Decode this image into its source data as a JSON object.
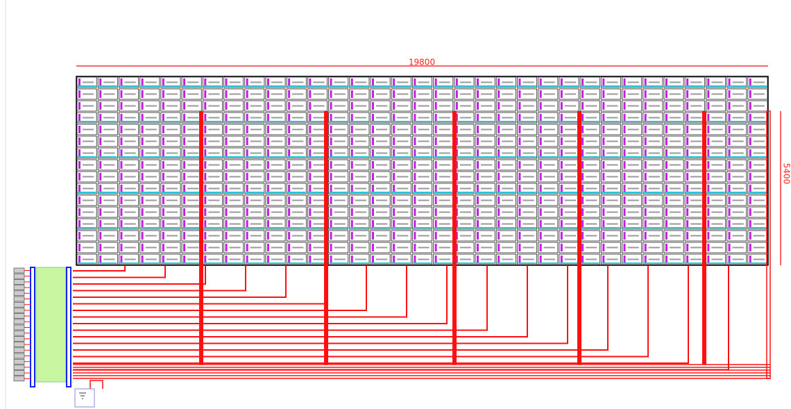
{
  "dimensions": {
    "width_label": "19800",
    "height_label": "5400"
  }
}
